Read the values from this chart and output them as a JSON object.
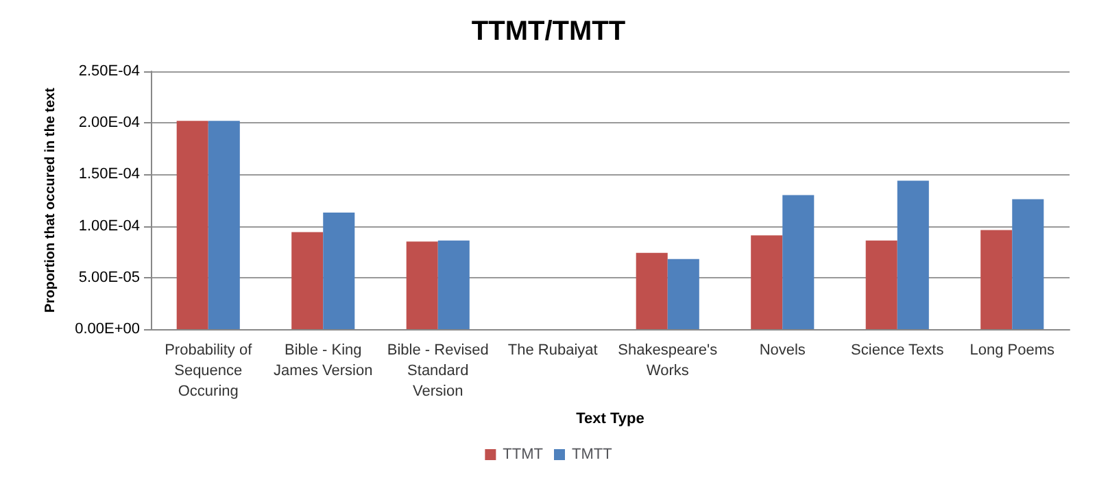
{
  "chart_data": {
    "type": "bar",
    "title": "TTMT/TMTT",
    "xlabel": "Text Type",
    "ylabel": "Proportion that occured in the text",
    "categories": [
      "Probability of Sequence Occuring",
      "Bible - King James Version",
      "Bible - Revised Standard Version",
      "The Rubaiyat",
      "Shakespeare's Works",
      "Novels",
      "Science Texts",
      "Long Poems"
    ],
    "series": [
      {
        "name": "TTMT",
        "color": "#c0504d",
        "values": [
          0.000202,
          9.4e-05,
          8.5e-05,
          null,
          7.4e-05,
          9.1e-05,
          8.6e-05,
          9.6e-05
        ]
      },
      {
        "name": "TMTT",
        "color": "#4f81bd",
        "values": [
          0.000202,
          0.000113,
          8.6e-05,
          null,
          6.8e-05,
          0.00013,
          0.000144,
          0.000126
        ]
      }
    ],
    "ylim": [
      0,
      0.00025
    ],
    "yticks": [
      {
        "value": 0,
        "label": "0.00E+00"
      },
      {
        "value": 5e-05,
        "label": "5.00E-05"
      },
      {
        "value": 0.0001,
        "label": "1.00E-04"
      },
      {
        "value": 0.00015,
        "label": "1.50E-04"
      },
      {
        "value": 0.0002,
        "label": "2.00E-04"
      },
      {
        "value": 0.00025,
        "label": "2.50E-04"
      }
    ],
    "grid": "y",
    "legend": "bottom"
  }
}
